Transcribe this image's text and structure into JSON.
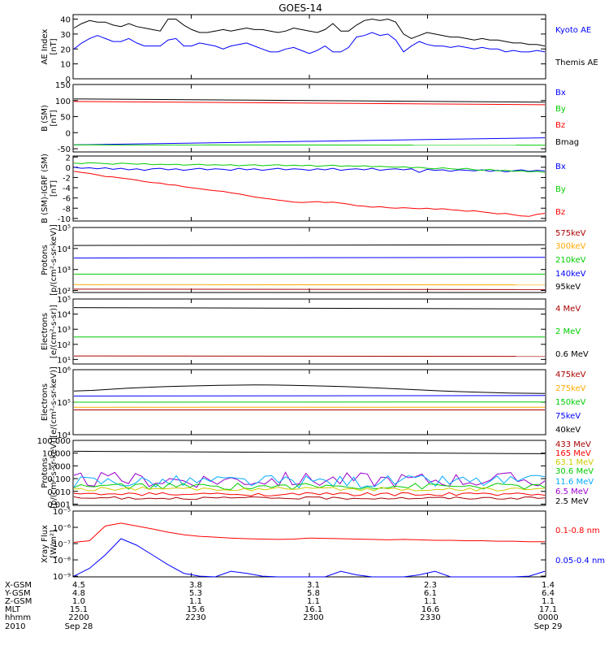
{
  "title": "GOES-14",
  "colors": {
    "black": "#000000",
    "blue": "#0000ff",
    "red": "#ff0000",
    "green": "#00cc00",
    "orange": "#ffaa00",
    "darkred": "#aa0000",
    "purple": "#9900cc",
    "cyan": "#00aaff",
    "yellow": "#cccc00"
  },
  "chart_data": [
    {
      "type": "line",
      "ylabel": "AE Index\n[nT]",
      "ylim": [
        0,
        43
      ],
      "ytick_labels": [
        "0",
        "10",
        "20",
        "30",
        "40"
      ],
      "ytick_values": [
        0,
        10,
        20,
        30,
        40
      ],
      "legend": [
        "Kyoto AE",
        "Themis AE"
      ],
      "legend_colors": [
        "blue",
        "black"
      ],
      "series": [
        {
          "name": "Kyoto AE",
          "color": "blue",
          "values": [
            20,
            24,
            27,
            29,
            27,
            25,
            25,
            27,
            24,
            22,
            22,
            22,
            26,
            27,
            22,
            22,
            24,
            23,
            22,
            20,
            22,
            23,
            24,
            22,
            20,
            18,
            18,
            20,
            21,
            19,
            17,
            19,
            22,
            18,
            18,
            21,
            28,
            29,
            31,
            29,
            30,
            26,
            18,
            22,
            25,
            23,
            22,
            22,
            21,
            22,
            21,
            20,
            21,
            20,
            20,
            18,
            19,
            18,
            18,
            19,
            18
          ]
        },
        {
          "name": "Themis AE",
          "color": "black",
          "values": [
            34,
            37,
            39,
            38,
            38,
            36,
            35,
            37,
            35,
            34,
            33,
            32,
            40,
            40,
            36,
            33,
            31,
            31,
            32,
            33,
            32,
            33,
            34,
            33,
            33,
            32,
            31,
            32,
            34,
            33,
            32,
            31,
            33,
            37,
            32,
            32,
            36,
            39,
            40,
            39,
            40,
            38,
            30,
            27,
            29,
            31,
            30,
            29,
            28,
            28,
            27,
            26,
            27,
            26,
            26,
            25,
            24,
            24,
            23,
            23,
            22
          ]
        }
      ]
    },
    {
      "type": "line",
      "ylabel": "B (SM)\n[nT]",
      "ylim": [
        -60,
        150
      ],
      "ytick_labels": [
        "150",
        "100",
        "50",
        "0",
        "-50"
      ],
      "ytick_values": [
        150,
        100,
        50,
        0,
        -50
      ],
      "legend": [
        "Bx",
        "By",
        "Bz",
        "Bmag"
      ],
      "legend_colors": [
        "blue",
        "green",
        "red",
        "black"
      ],
      "series": [
        {
          "name": "Bx",
          "color": "blue",
          "start": -38,
          "end": -16
        },
        {
          "name": "By",
          "color": "green",
          "start": -38,
          "end": -39
        },
        {
          "name": "Bz",
          "color": "red",
          "start": 97,
          "end": 87
        },
        {
          "name": "Bmag",
          "color": "black",
          "start": 105,
          "end": 95
        }
      ]
    },
    {
      "type": "line",
      "ylabel": "B (SM)-IGRF (SM)\n[nT]",
      "ylim": [
        -10.5,
        2.2
      ],
      "ytick_labels": [
        "2",
        "0",
        "-2",
        "-4",
        "-6",
        "-8",
        "-10"
      ],
      "ytick_values": [
        2,
        0,
        -2,
        -4,
        -6,
        -8,
        -10
      ],
      "legend": [
        "Bx",
        "By",
        "Bz"
      ],
      "legend_colors": [
        "blue",
        "green",
        "red"
      ],
      "series": [
        {
          "name": "Bx",
          "color": "blue",
          "values": [
            0.0,
            -0.2,
            -0.1,
            -0.3,
            -0.1,
            -0.4,
            -0.2,
            -0.5,
            -0.3,
            -0.6,
            -0.3,
            -0.2,
            -0.5,
            -0.3,
            -0.6,
            -0.4,
            -0.2,
            -0.5,
            -0.3,
            -0.4,
            -0.6,
            -0.2,
            -0.5,
            -0.3,
            -0.6,
            -0.4,
            -0.2,
            -0.5,
            -0.3,
            -0.4,
            -0.6,
            -0.3,
            -0.5,
            -0.2,
            -0.6,
            -0.4,
            -0.3,
            -0.5,
            -0.2,
            -0.6,
            -0.4,
            -0.3,
            -0.5,
            -0.3,
            -1.0,
            -0.4,
            -0.6,
            -0.5,
            -0.8,
            -0.5,
            -0.6,
            -0.7,
            -0.5,
            -0.8,
            -0.6,
            -0.9,
            -0.7,
            -0.5,
            -0.8,
            -0.6,
            -0.7
          ]
        },
        {
          "name": "By",
          "color": "green",
          "values": [
            0.8,
            0.7,
            0.9,
            0.8,
            0.7,
            0.6,
            0.8,
            0.7,
            0.6,
            0.7,
            0.5,
            0.6,
            0.5,
            0.6,
            0.4,
            0.5,
            0.6,
            0.4,
            0.5,
            0.4,
            0.5,
            0.3,
            0.4,
            0.5,
            0.3,
            0.4,
            0.5,
            0.3,
            0.4,
            0.3,
            0.4,
            0.2,
            0.3,
            0.4,
            0.2,
            0.3,
            0.2,
            0.3,
            0.1,
            0.2,
            0.1,
            0.0,
            0.1,
            -0.1,
            0.0,
            -0.2,
            -0.3,
            -0.1,
            -0.3,
            -0.4,
            -0.2,
            -0.5,
            -0.6,
            -0.4,
            -0.7,
            -0.6,
            -0.8,
            -0.7,
            -0.9,
            -0.8,
            -1.0
          ]
        },
        {
          "name": "Bz",
          "color": "red",
          "values": [
            -0.8,
            -1.0,
            -1.2,
            -1.5,
            -1.8,
            -1.9,
            -2.1,
            -2.3,
            -2.5,
            -2.8,
            -3.0,
            -3.1,
            -3.4,
            -3.5,
            -3.8,
            -4.0,
            -4.2,
            -4.4,
            -4.6,
            -4.7,
            -5.0,
            -5.2,
            -5.5,
            -5.8,
            -6.0,
            -6.2,
            -6.4,
            -6.6,
            -6.8,
            -6.9,
            -6.8,
            -6.7,
            -6.9,
            -6.8,
            -7.0,
            -7.2,
            -7.5,
            -7.6,
            -7.8,
            -7.7,
            -7.9,
            -8.0,
            -7.9,
            -8.0,
            -8.1,
            -8.0,
            -8.2,
            -8.1,
            -8.3,
            -8.4,
            -8.6,
            -8.5,
            -8.7,
            -8.9,
            -9.1,
            -9.0,
            -9.3,
            -9.5,
            -9.6,
            -9.2,
            -9.0
          ]
        }
      ]
    },
    {
      "type": "line",
      "log": true,
      "ylabel": "Protons\n[p/(cm²-s-sr-keV)]",
      "ylim": [
        80,
        100000
      ],
      "ytick_labels": [
        "10²",
        "10³",
        "10⁴",
        "10⁵"
      ],
      "ytick_values": [
        100,
        1000,
        10000,
        100000
      ],
      "legend": [
        "575keV",
        "300keV",
        "210keV",
        "140keV",
        "95keV"
      ],
      "legend_colors": [
        "darkred",
        "orange",
        "green",
        "blue",
        "black"
      ],
      "series": [
        {
          "name": "95keV",
          "color": "black",
          "start": 14000,
          "end": 15000
        },
        {
          "name": "140keV",
          "color": "blue",
          "start": 3500,
          "end": 3800
        },
        {
          "name": "210keV",
          "color": "green",
          "start": 600,
          "end": 600
        },
        {
          "name": "300keV",
          "color": "orange",
          "start": 190,
          "end": 185
        },
        {
          "name": "575keV",
          "color": "darkred",
          "start": 115,
          "end": 110
        }
      ]
    },
    {
      "type": "line",
      "log": true,
      "ylabel": "Electrons\n[e/(cm²-s-sr)]",
      "ylim": [
        5,
        100000
      ],
      "ytick_labels": [
        "10¹",
        "10²",
        "10³",
        "10⁴",
        "10⁵"
      ],
      "ytick_values": [
        10,
        100,
        1000,
        10000,
        100000
      ],
      "legend": [
        "4 MeV",
        "2 MeV",
        "0.6 MeV"
      ],
      "legend_colors": [
        "darkred",
        "green",
        "black"
      ],
      "series": [
        {
          "name": "0.6 MeV",
          "color": "black",
          "start": 27000,
          "end": 22000
        },
        {
          "name": "2 MeV",
          "color": "green",
          "start": 310,
          "end": 305
        },
        {
          "name": "4 MeV",
          "color": "darkred",
          "start": 17,
          "end": 16
        }
      ]
    },
    {
      "type": "line",
      "log": true,
      "ylabel": "Electrons\n[e/(cm²-s-sr-keV)]",
      "ylim": [
        10000,
        1000000
      ],
      "ytick_labels": [
        "10⁴",
        "10⁵",
        "10⁶"
      ],
      "ytick_values": [
        10000,
        100000,
        1000000
      ],
      "legend": [
        "475keV",
        "275keV",
        "150keV",
        "75keV",
        "40keV"
      ],
      "legend_colors": [
        "darkred",
        "orange",
        "green",
        "blue",
        "black"
      ],
      "series": [
        {
          "name": "40keV",
          "color": "black",
          "values": [
            220000,
            230000,
            250000,
            270000,
            285000,
            300000,
            310000,
            320000,
            330000,
            335000,
            338000,
            336000,
            330000,
            322000,
            312000,
            300000,
            285000,
            270000,
            255000,
            240000,
            225000,
            215000,
            205000,
            198000,
            192000,
            188000,
            185000
          ]
        },
        {
          "name": "75keV",
          "color": "blue",
          "start": 155000,
          "end": 160000
        },
        {
          "name": "150keV",
          "color": "green",
          "start": 100000,
          "end": 102000
        },
        {
          "name": "275keV",
          "color": "orange",
          "start": 70000,
          "end": 70000
        },
        {
          "name": "475keV",
          "color": "darkred",
          "start": 58000,
          "end": 58000
        }
      ]
    },
    {
      "type": "line",
      "log": true,
      "ylabel": "Protons\n[p/(cm²-s-sr-keV)]",
      "ylim": [
        0.0008,
        100
      ],
      "ytick_labels": [
        "0.001",
        "0.010",
        "0.100",
        "1.000",
        "10.000",
        "100.000"
      ],
      "ytick_values": [
        0.001,
        0.01,
        0.1,
        1,
        10,
        100
      ],
      "legend": [
        "433 MeV",
        "165 MeV",
        "63.1 MeV",
        "30.6 MeV",
        "11.6 MeV",
        "6.5 MeV",
        "2.5 MeV"
      ],
      "legend_colors": [
        "darkred",
        "red",
        "yellow",
        "green",
        "cyan",
        "purple",
        "black"
      ],
      "series": [
        {
          "name": "2.5 MeV",
          "color": "black",
          "start": 14,
          "end": 9
        },
        {
          "name": "6.5 MeV",
          "color": "purple",
          "noisy": true,
          "base": 0.08,
          "amp": 1.2
        },
        {
          "name": "11.6 MeV",
          "color": "cyan",
          "noisy": true,
          "base": 0.06,
          "amp": 1.0
        },
        {
          "name": "30.6 MeV",
          "color": "green",
          "noisy": true,
          "base": 0.025,
          "amp": 0.5
        },
        {
          "name": "63.1 MeV",
          "color": "yellow",
          "noisy": true,
          "base": 0.015,
          "amp": 0.3
        },
        {
          "name": "165 MeV",
          "color": "red",
          "noisy": true,
          "base": 0.006,
          "amp": 0.25
        },
        {
          "name": "433 MeV",
          "color": "darkred",
          "noisy": true,
          "base": 0.003,
          "amp": 0.2
        }
      ]
    },
    {
      "type": "line",
      "log": true,
      "ylabel": "Xray Flux\n[W/m²]",
      "ylim": [
        9e-10,
        1e-05
      ],
      "ytick_labels": [
        "10⁻⁵",
        "10⁻⁶",
        "10⁻⁷",
        "10⁻⁸",
        "10⁻⁹"
      ],
      "ytick_values": [
        1e-05,
        1e-06,
        1e-07,
        1e-08,
        1e-09
      ],
      "legend": [
        "0.1-0.8 nm",
        "0.05-0.4 nm"
      ],
      "legend_colors": [
        "red",
        "blue"
      ],
      "series": [
        {
          "name": "0.1-0.8 nm",
          "color": "red",
          "values": [
            1.2e-07,
            1.5e-07,
            1.2e-06,
            1.8e-06,
            1.2e-06,
            8e-07,
            5e-07,
            3.5e-07,
            2.8e-07,
            2.5e-07,
            2.2e-07,
            2e-07,
            1.9e-07,
            1.8e-07,
            1.9e-07,
            2.2e-07,
            2.1e-07,
            2e-07,
            1.9e-07,
            1.8e-07,
            1.7e-07,
            1.8e-07,
            1.7e-07,
            1.6e-07,
            1.6e-07,
            1.5e-07,
            1.5e-07,
            1.4e-07,
            1.4e-07,
            1.3e-07,
            1.3e-07
          ]
        },
        {
          "name": "0.05-0.4 nm",
          "color": "blue",
          "values": [
            1e-09,
            3e-09,
            2e-08,
            2e-07,
            8e-08,
            2e-08,
            5e-09,
            1.5e-09,
            1e-09,
            9e-10,
            2e-09,
            1.5e-09,
            1e-09,
            9e-10,
            9e-10,
            9e-10,
            9e-10,
            2e-09,
            1.2e-09,
            9e-10,
            9e-10,
            9e-10,
            1.2e-09,
            2e-09,
            9e-10,
            9e-10,
            9e-10,
            9e-10,
            9e-10,
            1e-09,
            2e-09
          ]
        }
      ]
    }
  ],
  "ephemeris": {
    "rows": [
      {
        "label": "X-GSM",
        "values": [
          "4.5",
          "3.8",
          "3.1",
          "2.3",
          "1.4"
        ]
      },
      {
        "label": "Y-GSM",
        "values": [
          "4.8",
          "5.3",
          "5.8",
          "6.1",
          "6.4"
        ]
      },
      {
        "label": "Z-GSM",
        "values": [
          "1.0",
          "1.1",
          "1.1",
          "1.1",
          "1.1"
        ]
      },
      {
        "label": "MLT",
        "values": [
          "15.1",
          "15.6",
          "16.1",
          "16.6",
          "17.1"
        ]
      },
      {
        "label": "hhmm",
        "values": [
          "2200",
          "2230",
          "2300",
          "2330",
          "0000"
        ]
      },
      {
        "label": "2010",
        "values": [
          "Sep 28",
          "",
          "",
          "",
          "Sep 29"
        ]
      }
    ]
  }
}
